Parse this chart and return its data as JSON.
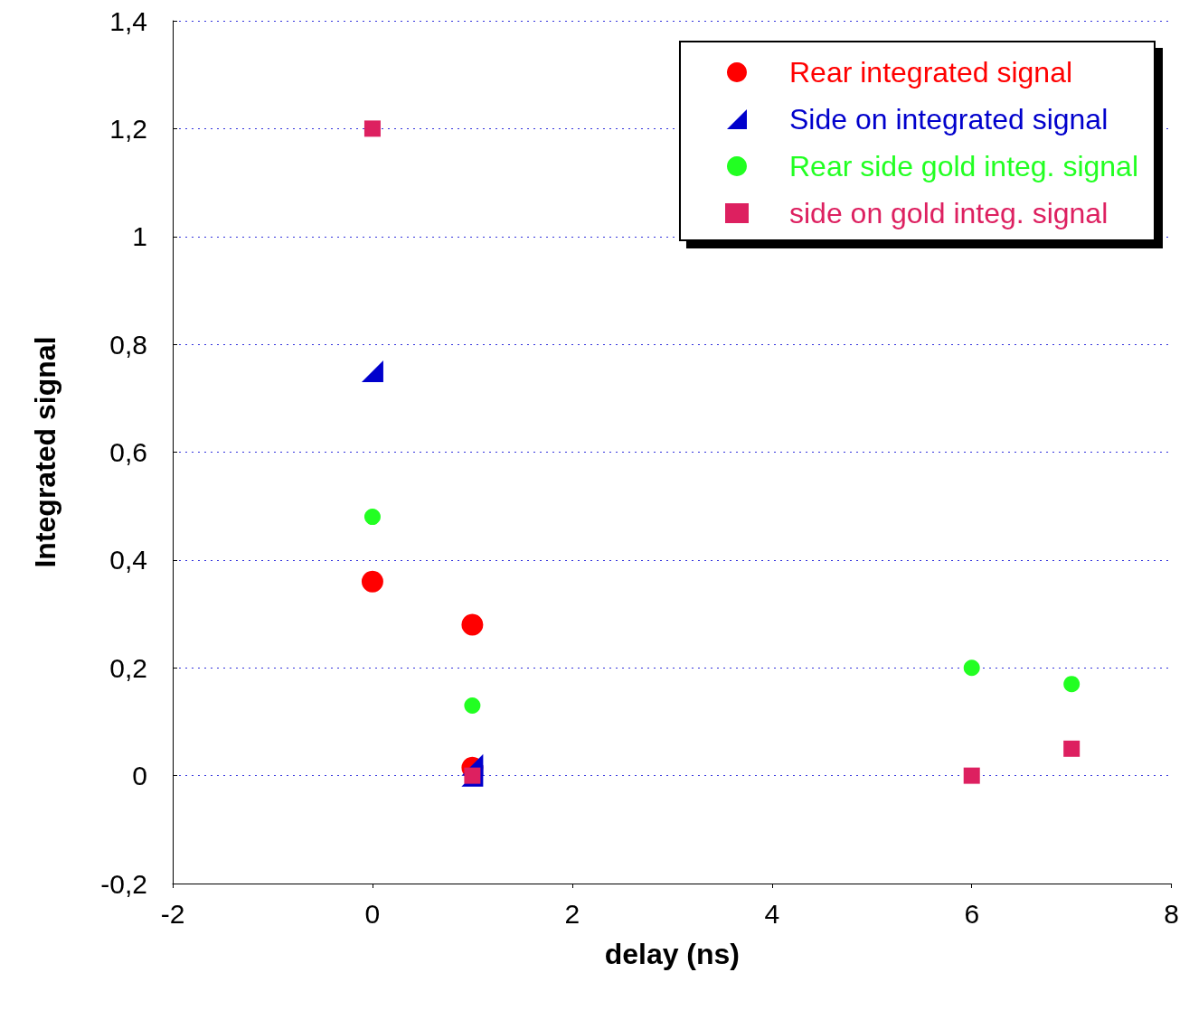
{
  "chart_data": {
    "type": "scatter",
    "xlabel": "delay (ns)",
    "ylabel": "Integrated signal",
    "xlim": [
      -2,
      8
    ],
    "xticks": [
      -2,
      0,
      2,
      4,
      6,
      8
    ],
    "ylim": [
      -0.2,
      1.4
    ],
    "yticks": [
      {
        "value": -0.2,
        "label": "-0,2"
      },
      0,
      {
        "value": 0.2,
        "label": "0,2"
      },
      {
        "value": 0.4,
        "label": "0,4"
      },
      {
        "value": 0.6,
        "label": "0,6"
      },
      {
        "value": 0.8,
        "label": "0,8"
      },
      1,
      {
        "value": 1.2,
        "label": "1,2"
      },
      {
        "value": 1.4,
        "label": "1,4"
      }
    ],
    "grid": "y",
    "legend": "top right",
    "series": [
      {
        "name": "Rear integrated signal",
        "color": "#ff0000",
        "marker": "circle",
        "x": [
          0,
          1,
          1
        ],
        "values": [
          0.36,
          0.28,
          0.015
        ]
      },
      {
        "name": "Side on integrated signal",
        "color": "#0000cc",
        "marker": "triangle",
        "x": [
          0,
          1,
          1
        ],
        "values": [
          0.75,
          0.02,
          0
        ]
      },
      {
        "name": "Rear side gold integ. signal",
        "color": "#22ff22",
        "marker": "circle",
        "x": [
          0,
          1,
          6,
          7
        ],
        "values": [
          0.48,
          0.13,
          0.2,
          0.17
        ]
      },
      {
        "name": "side on gold integ. signal",
        "color": "#dd2060",
        "marker": "square",
        "x": [
          0,
          1,
          6,
          7
        ],
        "values": [
          1.2,
          0,
          0,
          0.05
        ]
      }
    ]
  }
}
